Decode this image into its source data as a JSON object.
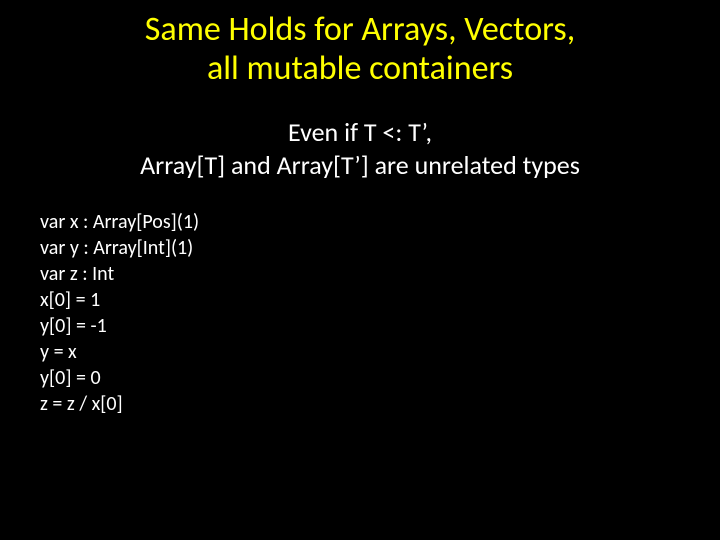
{
  "title": {
    "line1": "Same Holds for Arrays, Vectors,",
    "line2": "all mutable containers",
    "color": "#ffff00",
    "fontsize": 34
  },
  "subtitle": {
    "line1": "Even if T <: T’,",
    "line2": "Array[T] and Array[T’] are unrelated types",
    "color": "#ffffff",
    "fontsize": 26
  },
  "code": {
    "lines": [
      "var x : Array[Pos](1)",
      "var y : Array[Int](1)",
      "var z : Int",
      "x[0] = 1",
      "y[0] = -1",
      "y = x",
      "y[0] = 0",
      "z = z / x[0]"
    ],
    "color": "#ffffff",
    "fontsize": 20
  },
  "background_color": "#000000"
}
